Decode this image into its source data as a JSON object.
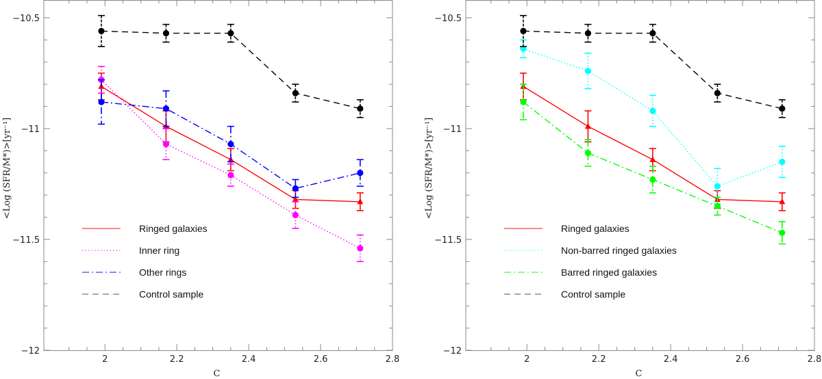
{
  "chart_data": [
    {
      "type": "line",
      "title": "",
      "xlabel": "C",
      "ylabel": "<Log (SFR/M*)>[yr⁻¹]",
      "xlim": [
        1.83,
        2.8
      ],
      "ylim": [
        -12,
        -10.42
      ],
      "xticks": [
        2,
        2.2,
        2.4,
        2.6,
        2.8
      ],
      "xtick_labels": [
        "2",
        "2.2",
        "2.4",
        "2.6",
        "2.8"
      ],
      "yticks": [
        -12,
        -11.5,
        -11,
        -10.5
      ],
      "ytick_labels": [
        "−12",
        "−11.5",
        "−11",
        "−10.5"
      ],
      "series": [
        {
          "name": "Ringed galaxies",
          "color": "#ff0000",
          "dash": "solid",
          "marker": "triangle",
          "x": [
            1.99,
            2.17,
            2.35,
            2.53,
            2.71
          ],
          "y": [
            -10.81,
            -10.99,
            -11.14,
            -11.32,
            -11.33
          ],
          "err": [
            0.06,
            0.07,
            0.05,
            0.04,
            0.04
          ]
        },
        {
          "name": "Inner ring",
          "color": "#ff00ff",
          "dash": "dotted",
          "marker": "circle",
          "x": [
            1.99,
            2.17,
            2.35,
            2.53,
            2.71
          ],
          "y": [
            -10.78,
            -11.07,
            -11.21,
            -11.39,
            -11.54
          ],
          "err": [
            0.06,
            0.07,
            0.05,
            0.06,
            0.06
          ]
        },
        {
          "name": "Other rings",
          "color": "#0000ff",
          "dash": "dashdot",
          "marker": "circle",
          "x": [
            1.99,
            2.17,
            2.35,
            2.53,
            2.71
          ],
          "y": [
            -10.88,
            -10.91,
            -11.07,
            -11.27,
            -11.2
          ],
          "err": [
            0.1,
            0.08,
            0.08,
            0.04,
            0.06
          ]
        },
        {
          "name": "Control sample",
          "color": "#000000",
          "dash": "dashed",
          "marker": "circle",
          "x": [
            1.99,
            2.17,
            2.35,
            2.53,
            2.71
          ],
          "y": [
            -10.56,
            -10.57,
            -10.57,
            -10.84,
            -10.91
          ],
          "err": [
            0.07,
            0.04,
            0.04,
            0.04,
            0.04
          ]
        }
      ],
      "legend": "lower-left"
    },
    {
      "type": "line",
      "title": "",
      "xlabel": "C",
      "ylabel": "<Log (SFR/M*)>[yr⁻¹]",
      "xlim": [
        1.83,
        2.8
      ],
      "ylim": [
        -12,
        -10.42
      ],
      "xticks": [
        2,
        2.2,
        2.4,
        2.6,
        2.8
      ],
      "xtick_labels": [
        "2",
        "2.2",
        "2.4",
        "2.6",
        "2.8"
      ],
      "yticks": [
        -12,
        -11.5,
        -11,
        -10.5
      ],
      "ytick_labels": [
        "−12",
        "−11.5",
        "−11",
        "−10.5"
      ],
      "series": [
        {
          "name": "Ringed galaxies",
          "color": "#ff0000",
          "dash": "solid",
          "marker": "triangle",
          "x": [
            1.99,
            2.17,
            2.35,
            2.53,
            2.71
          ],
          "y": [
            -10.81,
            -10.99,
            -11.14,
            -11.32,
            -11.33
          ],
          "err": [
            0.06,
            0.07,
            0.05,
            0.04,
            0.04
          ]
        },
        {
          "name": "Non-barred ringed galaxies",
          "color": "#00ffff",
          "dash": "dotted",
          "marker": "circle",
          "x": [
            1.99,
            2.17,
            2.35,
            2.53,
            2.71
          ],
          "y": [
            -10.64,
            -10.74,
            -10.92,
            -11.26,
            -11.15
          ],
          "err": [
            0.04,
            0.08,
            0.07,
            0.08,
            0.07
          ]
        },
        {
          "name": "Barred ringed galaxies",
          "color": "#00ff00",
          "dash": "dashdot",
          "marker": "circle",
          "x": [
            1.99,
            2.17,
            2.35,
            2.53,
            2.71
          ],
          "y": [
            -10.88,
            -11.11,
            -11.23,
            -11.35,
            -11.47
          ],
          "err": [
            0.08,
            0.06,
            0.06,
            0.04,
            0.05
          ]
        },
        {
          "name": "Control sample",
          "color": "#000000",
          "dash": "dashed",
          "marker": "circle",
          "x": [
            1.99,
            2.17,
            2.35,
            2.53,
            2.71
          ],
          "y": [
            -10.56,
            -10.57,
            -10.57,
            -10.84,
            -10.91
          ],
          "err": [
            0.07,
            0.04,
            0.04,
            0.04,
            0.04
          ]
        }
      ],
      "legend": "lower-left"
    }
  ]
}
